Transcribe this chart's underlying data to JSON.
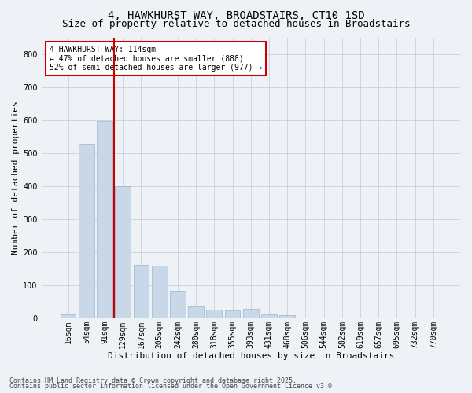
{
  "title_line1": "4, HAWKHURST WAY, BROADSTAIRS, CT10 1SD",
  "title_line2": "Size of property relative to detached houses in Broadstairs",
  "xlabel": "Distribution of detached houses by size in Broadstairs",
  "ylabel": "Number of detached properties",
  "categories": [
    "16sqm",
    "54sqm",
    "91sqm",
    "129sqm",
    "167sqm",
    "205sqm",
    "242sqm",
    "280sqm",
    "318sqm",
    "355sqm",
    "393sqm",
    "431sqm",
    "468sqm",
    "506sqm",
    "544sqm",
    "582sqm",
    "619sqm",
    "657sqm",
    "695sqm",
    "732sqm",
    "770sqm"
  ],
  "values": [
    12,
    527,
    597,
    400,
    162,
    160,
    85,
    38,
    28,
    25,
    30,
    12,
    10,
    0,
    0,
    0,
    0,
    0,
    0,
    0,
    0
  ],
  "bar_color": "#c8d8e8",
  "bar_edge_color": "#9ab4c8",
  "vline_x": 2.5,
  "vline_color": "#cc0000",
  "annotation_text": "4 HAWKHURST WAY: 114sqm\n← 47% of detached houses are smaller (888)\n52% of semi-detached houses are larger (977) →",
  "annotation_box_color": "#ffffff",
  "annotation_box_edge": "#cc0000",
  "ylim": [
    0,
    850
  ],
  "yticks": [
    0,
    100,
    200,
    300,
    400,
    500,
    600,
    700,
    800
  ],
  "background_color": "#eef2f7",
  "footer_line1": "Contains HM Land Registry data © Crown copyright and database right 2025.",
  "footer_line2": "Contains public sector information licensed under the Open Government Licence v3.0.",
  "title_fontsize": 10,
  "subtitle_fontsize": 9,
  "axis_label_fontsize": 8,
  "tick_fontsize": 7,
  "annot_fontsize": 7,
  "footer_fontsize": 6
}
